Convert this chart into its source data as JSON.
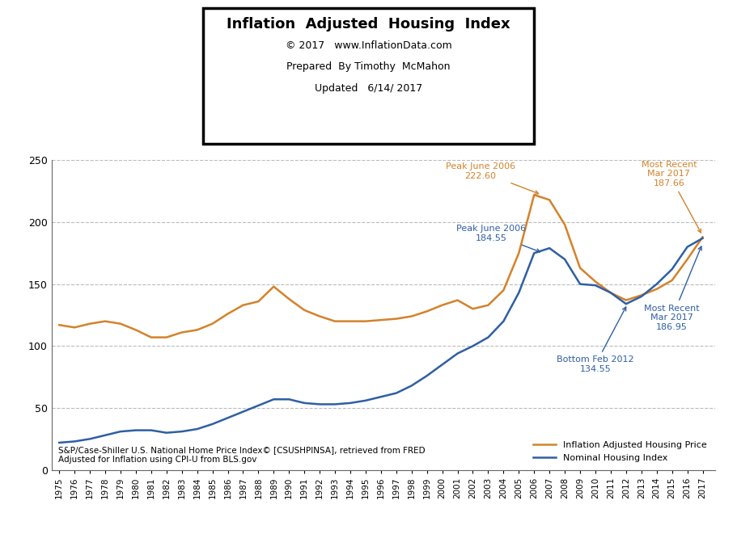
{
  "title": "Inflation  Adjusted  Housing  Index",
  "subtitle_line1": "© 2017   www.InflationData.com",
  "subtitle_line2": "Prepared  By Timothy  McMahon",
  "subtitle_line3": "Updated   6/14/ 2017",
  "footnote_line1": "S&P/Case-Shiller U.S. National Home Price Index© [CSUSHPINSA], retrieved from FRED",
  "footnote_line2": "Adjusted for Inflation using CPI-U from BLS.gov",
  "legend_label1": "Inflation Adjusted Housing Price",
  "legend_label2": "Nominal Housing Index",
  "orange_color": "#D4822A",
  "blue_color": "#2E5FA3",
  "years": [
    1975,
    1976,
    1977,
    1978,
    1979,
    1980,
    1981,
    1982,
    1983,
    1984,
    1985,
    1986,
    1987,
    1988,
    1989,
    1990,
    1991,
    1992,
    1993,
    1994,
    1995,
    1996,
    1997,
    1998,
    1999,
    2000,
    2001,
    2002,
    2003,
    2004,
    2005,
    2006,
    2007,
    2008,
    2009,
    2010,
    2011,
    2012,
    2013,
    2014,
    2015,
    2016,
    2017
  ],
  "inflation_adjusted": [
    117,
    115,
    118,
    120,
    118,
    113,
    107,
    107,
    111,
    113,
    118,
    126,
    133,
    136,
    148,
    138,
    129,
    124,
    120,
    120,
    120,
    121,
    122,
    124,
    128,
    133,
    137,
    130,
    133,
    145,
    175,
    222,
    218,
    198,
    163,
    152,
    143,
    137,
    141,
    146,
    153,
    170,
    188
  ],
  "nominal": [
    22,
    23,
    25,
    28,
    31,
    32,
    32,
    30,
    31,
    33,
    37,
    42,
    47,
    52,
    57,
    57,
    54,
    53,
    53,
    54,
    56,
    59,
    62,
    68,
    76,
    85,
    94,
    100,
    107,
    120,
    143,
    175,
    179,
    170,
    150,
    149,
    143,
    134,
    140,
    150,
    162,
    180,
    187
  ],
  "ylim": [
    0,
    250
  ],
  "yticks": [
    0,
    50,
    100,
    150,
    200,
    250
  ],
  "xlim_left": 1974.5,
  "xlim_right": 2017.8
}
